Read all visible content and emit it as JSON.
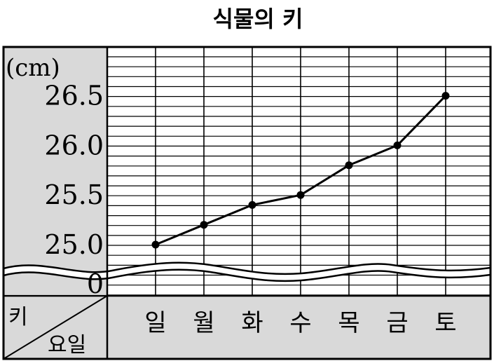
{
  "chart_data": {
    "type": "line",
    "title": "식물의 키",
    "unit_label": "(cm)",
    "corner_top_label": "키",
    "corner_bottom_label": "요일",
    "categories": [
      "일",
      "월",
      "화",
      "수",
      "목",
      "금",
      "토"
    ],
    "values": [
      25.0,
      25.2,
      25.4,
      25.5,
      25.8,
      26.0,
      26.5
    ],
    "y_tick_labels": [
      "26.5",
      "26.0",
      "25.5",
      "25.0",
      "0"
    ],
    "y_ticks": [
      26.5,
      26.0,
      25.5,
      25.0
    ],
    "ylim": [
      24.9,
      26.9
    ],
    "axis_break": true,
    "grid": true,
    "colors": {
      "line": "#000000",
      "panel": "#d9d9d9",
      "grid": "#000000"
    }
  }
}
